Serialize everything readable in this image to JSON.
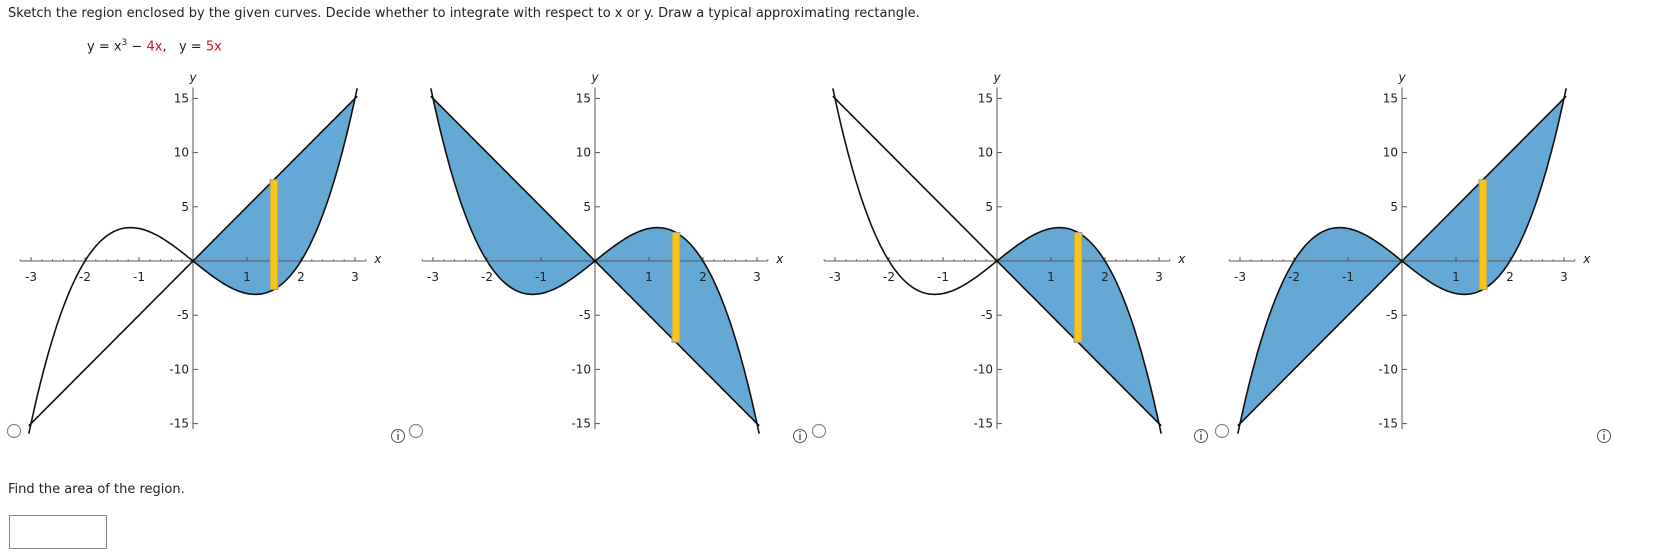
{
  "instruction": "Sketch the region enclosed by the given curves. Decide whether to integrate with respect to x or y. Draw a typical approximating rectangle.",
  "equations": [
    {
      "left": "y = x",
      "exponent": "3",
      "sign": "−",
      "term": "4x",
      "separator": ","
    },
    {
      "left": "y =",
      "term": "5x"
    }
  ],
  "axis": {
    "x_label": "x",
    "y_label": "y",
    "x_ticks": [
      -3,
      -2,
      -1,
      1,
      2,
      3
    ],
    "y_ticks": [
      15,
      10,
      5,
      -5,
      -10,
      -15
    ]
  },
  "options": [
    {
      "reflected": false,
      "shaded_sides": [
        "right"
      ]
    },
    {
      "reflected": true,
      "shaded_sides": [
        "left",
        "right"
      ]
    },
    {
      "reflected": true,
      "shaded_sides": [
        "right"
      ]
    },
    {
      "reflected": false,
      "shaded_sides": [
        "left",
        "right"
      ]
    }
  ],
  "question": "Find the area of the region."
}
